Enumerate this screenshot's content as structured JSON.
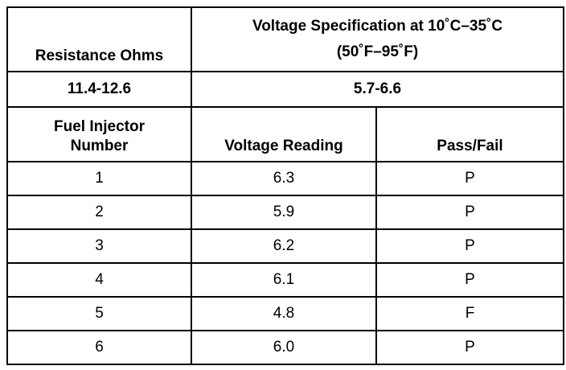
{
  "table": {
    "header": {
      "resistance_label": "Resistance Ohms",
      "voltage_spec_label": [
        "Voltage Specification at 10˚C–35˚C",
        "(50˚F–95˚F)"
      ]
    },
    "spec_row": {
      "resistance": "11.4-12.6",
      "voltage": "5.7-6.6"
    },
    "columns": [
      [
        "Fuel Injector",
        "Number"
      ],
      "Voltage Reading",
      "Pass/Fail"
    ],
    "rows": [
      [
        "1",
        "6.3",
        "P"
      ],
      [
        "2",
        "5.9",
        "P"
      ],
      [
        "3",
        "6.2",
        "P"
      ],
      [
        "4",
        "6.1",
        "P"
      ],
      [
        "5",
        "4.8",
        "F"
      ],
      [
        "6",
        "6.0",
        "P"
      ]
    ]
  }
}
